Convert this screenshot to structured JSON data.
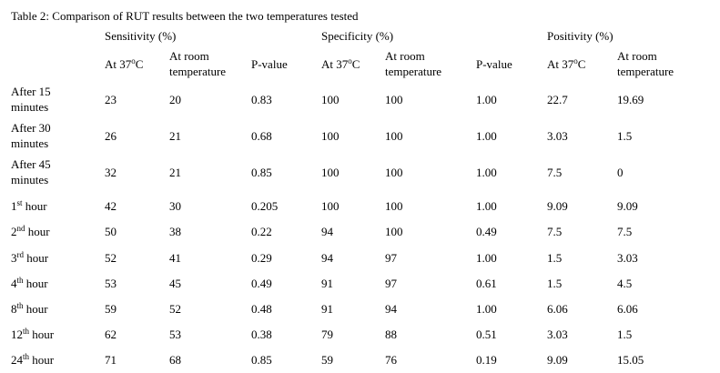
{
  "title": "Table 2: Comparison of RUT results between the two temperatures tested",
  "table": {
    "groups": [
      "Sensitivity (%)",
      "Specificity (%)",
      "Positivity (%)"
    ],
    "subheaders": [
      {
        "text": "At 37",
        "sup": "o",
        "tail": "C"
      },
      {
        "lines": [
          "At room",
          "temperature"
        ]
      },
      "P-value",
      {
        "text": "At 37",
        "sup": "o",
        "tail": "C"
      },
      {
        "lines": [
          "At room",
          "temperature"
        ]
      },
      "P-value",
      {
        "text": "At 37",
        "sup": "o",
        "tail": "C"
      },
      {
        "lines": [
          "At room",
          "temperature"
        ]
      }
    ],
    "rows": [
      {
        "label": {
          "lines": [
            "After 15",
            "minutes"
          ]
        },
        "cells": [
          "23",
          "20",
          "0.83",
          "100",
          "100",
          "1.00",
          "22.7",
          "19.69"
        ]
      },
      {
        "label": {
          "lines": [
            "After 30",
            "minutes"
          ]
        },
        "cells": [
          "26",
          "21",
          "0.68",
          "100",
          "100",
          "1.00",
          "3.03",
          "1.5"
        ]
      },
      {
        "label": {
          "lines": [
            "After 45",
            "minutes"
          ]
        },
        "cells": [
          "32",
          "21",
          "0.85",
          "100",
          "100",
          "1.00",
          "7.5",
          "0"
        ]
      },
      {
        "label": {
          "text": "1",
          "sup": "st",
          "tail": " hour"
        },
        "cells": [
          "42",
          "30",
          "0.205",
          "100",
          "100",
          "1.00",
          "9.09",
          "9.09"
        ]
      },
      {
        "label": {
          "text": "2",
          "sup": "nd",
          "tail": " hour"
        },
        "cells": [
          "50",
          "38",
          "0.22",
          "94",
          "100",
          "0.49",
          "7.5",
          "7.5"
        ]
      },
      {
        "label": {
          "text": "3",
          "sup": "rd",
          "tail": " hour"
        },
        "cells": [
          "52",
          "41",
          "0.29",
          "94",
          "97",
          "1.00",
          "1.5",
          "3.03"
        ]
      },
      {
        "label": {
          "text": "4",
          "sup": "th",
          "tail": " hour"
        },
        "cells": [
          "53",
          "45",
          "0.49",
          "91",
          "97",
          "0.61",
          "1.5",
          "4.5"
        ]
      },
      {
        "label": {
          "text": "8",
          "sup": "th",
          "tail": " hour"
        },
        "cells": [
          "59",
          "52",
          "0.48",
          "91",
          "94",
          "1.00",
          "6.06",
          "6.06"
        ]
      },
      {
        "label": {
          "text": "12",
          "sup": "th",
          "tail": " hour"
        },
        "cells": [
          "62",
          "53",
          "0.38",
          "79",
          "88",
          "0.51",
          "3.03",
          "1.5"
        ]
      },
      {
        "label": {
          "text": "24",
          "sup": "th",
          "tail": " hour"
        },
        "cells": [
          "71",
          "68",
          "0.85",
          "59",
          "76",
          "0.19",
          "9.09",
          "15.05"
        ]
      }
    ]
  }
}
